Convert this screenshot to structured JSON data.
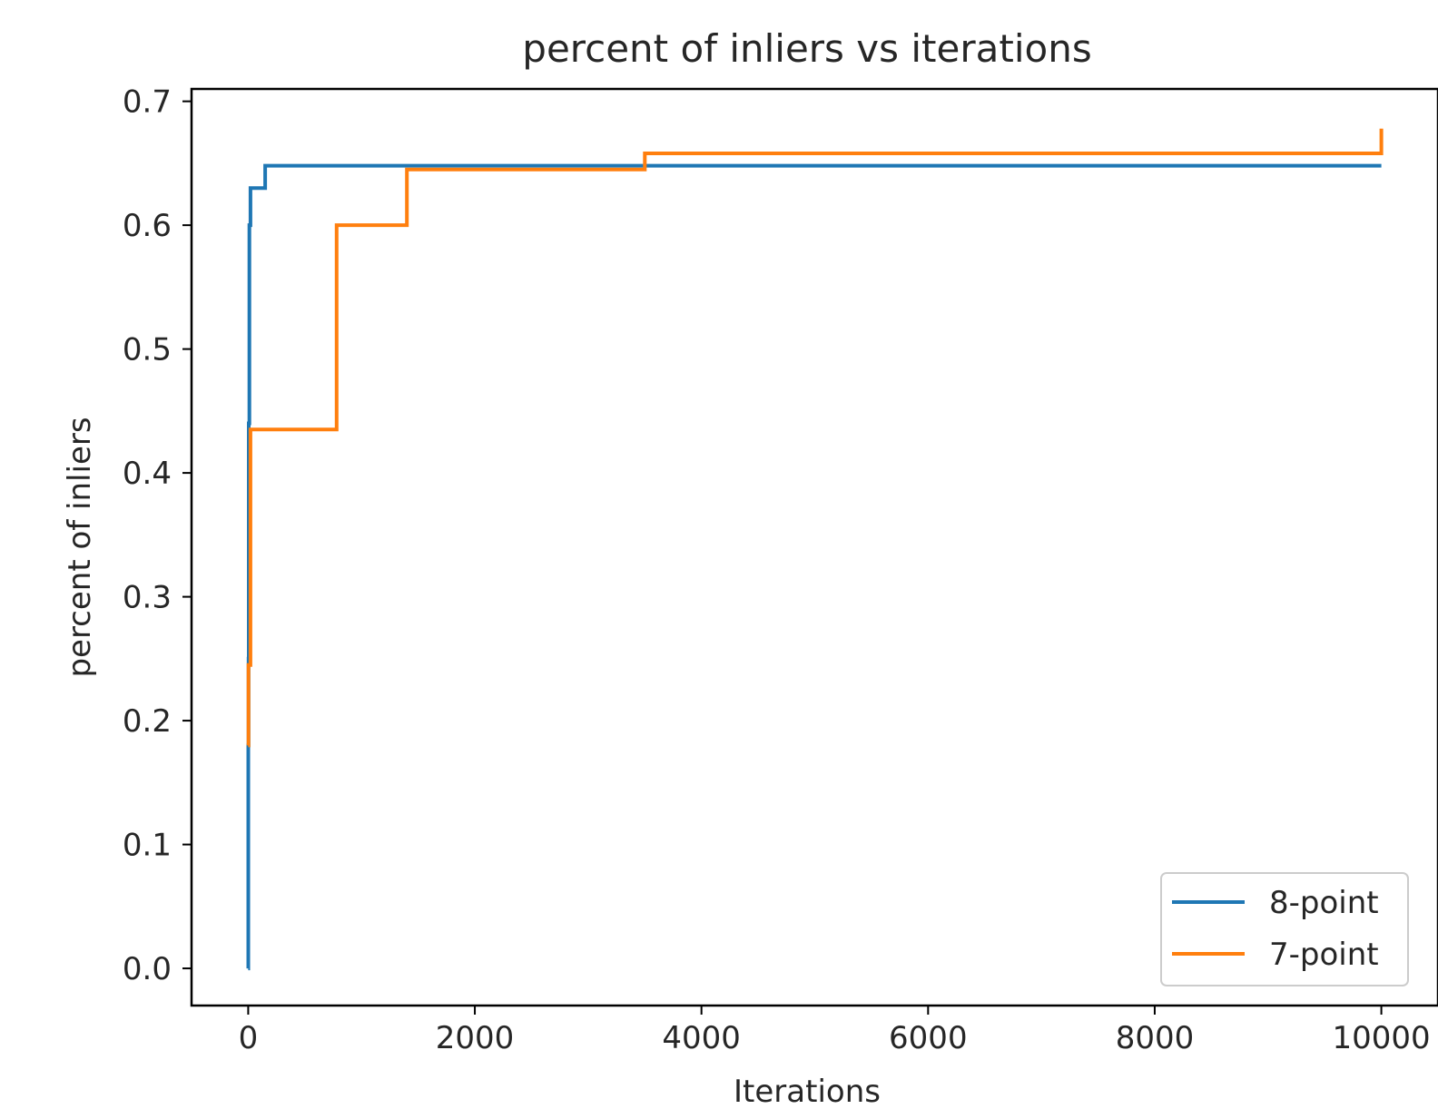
{
  "chart_data": {
    "type": "line",
    "title": "percent of inliers vs iterations",
    "xlabel": "Iterations",
    "ylabel": "percent of inliers",
    "xlim": [
      -500,
      10500
    ],
    "ylim": [
      -0.03,
      0.71
    ],
    "xticks": [
      0,
      2000,
      4000,
      6000,
      8000,
      10000
    ],
    "xtick_labels": [
      "0",
      "2000",
      "4000",
      "6000",
      "8000",
      "10000"
    ],
    "yticks": [
      0.0,
      0.1,
      0.2,
      0.3,
      0.4,
      0.5,
      0.6,
      0.7
    ],
    "ytick_labels": [
      "0.0",
      "0.1",
      "0.2",
      "0.3",
      "0.4",
      "0.5",
      "0.6",
      "0.7"
    ],
    "grid": false,
    "legend_position": "lower-right",
    "series": [
      {
        "name": "8-point",
        "color": "#1f77b4",
        "step": true,
        "x": [
          0,
          1,
          3,
          5,
          10,
          20,
          150,
          10000
        ],
        "y": [
          0.0,
          0.18,
          0.25,
          0.44,
          0.6,
          0.63,
          0.648,
          0.648
        ]
      },
      {
        "name": "7-point",
        "color": "#ff7f0e",
        "step": true,
        "x": [
          0,
          2,
          20,
          780,
          1400,
          3500,
          10000
        ],
        "y": [
          0.18,
          0.245,
          0.435,
          0.6,
          0.645,
          0.658,
          0.678
        ]
      }
    ]
  }
}
